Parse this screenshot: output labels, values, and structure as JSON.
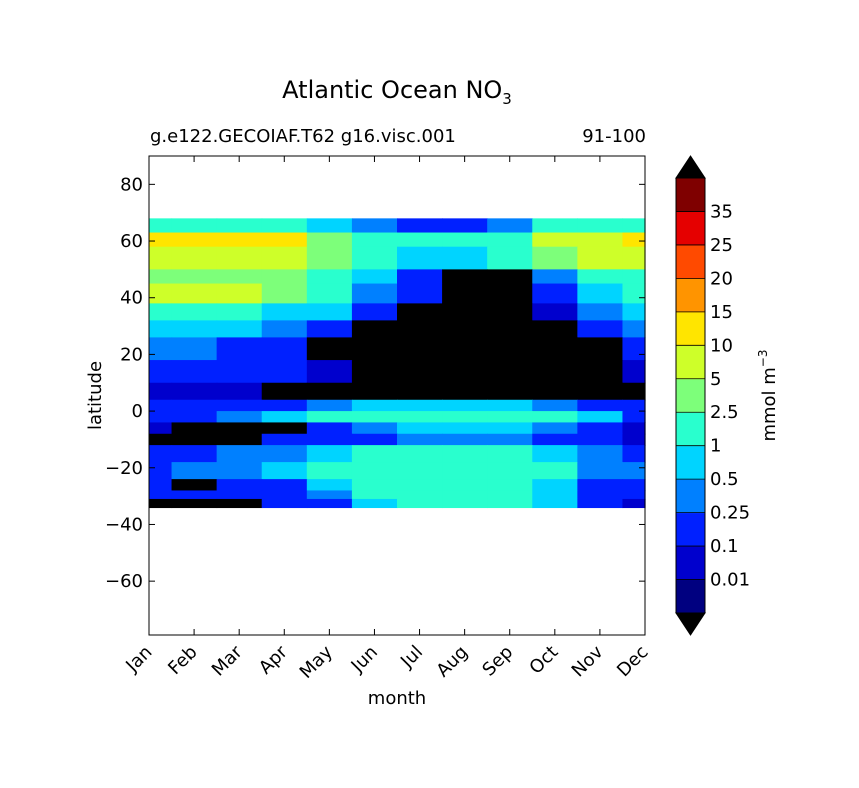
{
  "chart_data": {
    "type": "heatmap",
    "title": "Atlantic Ocean NO",
    "title_subscript": "3",
    "subtitle_left": "g.e122.GECOIAF.T62 g16.visc.001",
    "subtitle_right": "91-100",
    "xlabel": "month",
    "ylabel": "latitude",
    "x_categories": [
      "Jan",
      "Feb",
      "Mar",
      "Apr",
      "May",
      "Jun",
      "Jul",
      "Aug",
      "Sep",
      "Oct",
      "Nov",
      "Dec"
    ],
    "ylim": [
      -79,
      90
    ],
    "y_ticks": [
      80,
      60,
      40,
      20,
      0,
      -20,
      -40,
      -60
    ],
    "y_tick_labels": [
      "80",
      "60",
      "40",
      "20",
      "0",
      "−20",
      "−40",
      "−60"
    ],
    "data_lat_range": [
      -34,
      68
    ],
    "colorbar": {
      "label": "mmol m",
      "label_superscript": "−3",
      "levels": [
        "0.01",
        "0.1",
        "0.25",
        "0.5",
        "1",
        "2.5",
        "5",
        "10",
        "15",
        "20",
        "25",
        "35"
      ],
      "colors": [
        "#000080",
        "#0000cd",
        "#0020ff",
        "#0080ff",
        "#00d4ff",
        "#29ffce",
        "#7dff7a",
        "#ceff29",
        "#ffe500",
        "#ff9400",
        "#ff4a00",
        "#e50000",
        "#7f0000"
      ],
      "under_color": "#000000",
      "over_color": "#000000"
    },
    "bands": [
      {
        "lat_min": 63,
        "lat_max": 68,
        "values": [
          2,
          2,
          1.5,
          1,
          0.8,
          0.3,
          0.1,
          0.1,
          0.4,
          1,
          1.5,
          2
        ]
      },
      {
        "lat_min": 58,
        "lat_max": 63,
        "values": [
          12,
          12,
          12,
          10,
          3,
          2,
          1.2,
          1,
          2,
          6,
          9,
          12
        ]
      },
      {
        "lat_min": 50,
        "lat_max": 58,
        "values": [
          8,
          7,
          6,
          5,
          3,
          1.5,
          0.8,
          0.6,
          1,
          2.5,
          5,
          7
        ]
      },
      {
        "lat_min": 45,
        "lat_max": 50,
        "values": [
          3,
          3,
          2.8,
          2.5,
          1.5,
          0.5,
          0.2,
          0.005,
          0.005,
          0.3,
          1,
          2
        ]
      },
      {
        "lat_min": 38,
        "lat_max": 45,
        "values": [
          7,
          6,
          5,
          3,
          1.5,
          0.3,
          0.1,
          0.005,
          0.005,
          0.2,
          0.6,
          1.5
        ]
      },
      {
        "lat_min": 32,
        "lat_max": 38,
        "values": [
          1.5,
          1.5,
          1.2,
          0.8,
          0.5,
          0.2,
          0.005,
          0.005,
          0.005,
          0.05,
          0.3,
          0.8
        ]
      },
      {
        "lat_min": 26,
        "lat_max": 32,
        "values": [
          0.6,
          0.6,
          0.5,
          0.3,
          0.15,
          0.005,
          0.005,
          0.005,
          0.005,
          0.005,
          0.1,
          0.3
        ]
      },
      {
        "lat_min": 18,
        "lat_max": 26,
        "values": [
          0.3,
          0.3,
          0.2,
          0.15,
          0.005,
          0.005,
          0.005,
          0.005,
          0.005,
          0.005,
          0.005,
          0.1
        ]
      },
      {
        "lat_min": 10,
        "lat_max": 18,
        "values": [
          0.2,
          0.2,
          0.15,
          0.1,
          0.05,
          0.005,
          0.005,
          0.005,
          0.005,
          0.005,
          0.005,
          0.05
        ]
      },
      {
        "lat_min": 4,
        "lat_max": 10,
        "values": [
          0.05,
          0.05,
          0.05,
          0.005,
          0.005,
          0.005,
          0.005,
          0.005,
          0.005,
          0.005,
          0.005,
          0.005
        ]
      },
      {
        "lat_min": 0,
        "lat_max": 4,
        "values": [
          0.1,
          0.1,
          0.15,
          0.2,
          0.3,
          0.5,
          0.6,
          0.6,
          0.5,
          0.3,
          0.2,
          0.1
        ]
      },
      {
        "lat_min": -4,
        "lat_max": 0,
        "values": [
          0.15,
          0.2,
          0.3,
          0.6,
          1.2,
          2,
          2.2,
          2.2,
          2,
          1.2,
          0.5,
          0.2
        ]
      },
      {
        "lat_min": -8,
        "lat_max": -4,
        "values": [
          0.05,
          0.005,
          0.005,
          0.005,
          0.2,
          0.4,
          0.6,
          0.6,
          0.5,
          0.3,
          0.15,
          0.05
        ]
      },
      {
        "lat_min": -12,
        "lat_max": -8,
        "values": [
          0.005,
          0.005,
          0.005,
          0.1,
          0.15,
          0.2,
          0.3,
          0.3,
          0.25,
          0.15,
          0.1,
          0.05
        ]
      },
      {
        "lat_min": -18,
        "lat_max": -12,
        "values": [
          0.15,
          0.2,
          0.25,
          0.3,
          0.8,
          1.5,
          1.5,
          1.5,
          1.5,
          0.8,
          0.3,
          0.2
        ]
      },
      {
        "lat_min": -24,
        "lat_max": -18,
        "values": [
          0.2,
          0.25,
          0.3,
          0.5,
          1.2,
          2,
          2,
          2,
          2,
          1.2,
          0.4,
          0.3
        ]
      },
      {
        "lat_min": -28,
        "lat_max": -24,
        "values": [
          0.1,
          0.005,
          0.1,
          0.2,
          0.6,
          1.5,
          1.5,
          1.5,
          1.5,
          0.8,
          0.2,
          0.1
        ]
      },
      {
        "lat_min": -31,
        "lat_max": -28,
        "values": [
          0.1,
          0.1,
          0.15,
          0.2,
          0.4,
          1.2,
          1.5,
          1.5,
          1.2,
          0.6,
          0.2,
          0.1
        ]
      },
      {
        "lat_min": -34,
        "lat_max": -31,
        "values": [
          0.005,
          0.005,
          0.005,
          0.1,
          0.2,
          0.8,
          1.5,
          1.5,
          1,
          0.5,
          0.15,
          0.05
        ]
      }
    ]
  }
}
